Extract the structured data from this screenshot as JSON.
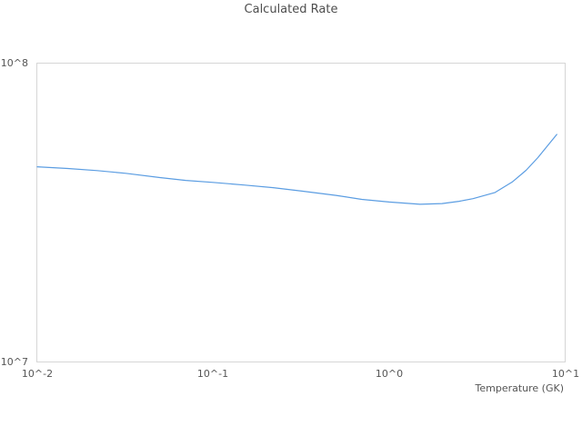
{
  "title": "Calculated Rate",
  "colors": {
    "background": "#ffffff",
    "line": "#5b9de2",
    "plot_border": "#d6d6d6",
    "title_text": "#4d4d4d",
    "tick_text": "#555555"
  },
  "chart_data": {
    "type": "line",
    "title": "Calculated Rate",
    "xlabel": "Temperature (GK)",
    "ylabel": "",
    "x_scale": "log",
    "y_scale": "log",
    "xlim": [
      0.01,
      10
    ],
    "ylim": [
      10000000.0,
      100000000.0
    ],
    "grid": false,
    "legend": "none",
    "x_ticks": [
      {
        "value": 0.01,
        "label": "10^-2"
      },
      {
        "value": 0.1,
        "label": "10^-1"
      },
      {
        "value": 1,
        "label": "10^0"
      },
      {
        "value": 10,
        "label": "10^1"
      }
    ],
    "y_ticks": [
      {
        "value": 10000000.0,
        "label": "10^7"
      },
      {
        "value": 100000000.0,
        "label": "10^8"
      }
    ],
    "series": [
      {
        "name": "calculated-rate",
        "color": "#5b9de2",
        "x": [
          0.01,
          0.015,
          0.022,
          0.032,
          0.05,
          0.07,
          0.1,
          0.15,
          0.22,
          0.32,
          0.5,
          0.7,
          1.0,
          1.5,
          2.0,
          2.5,
          3.0,
          4.0,
          5.0,
          6.0,
          7.0,
          8.0,
          9.0
        ],
        "y": [
          45000000.0,
          44400000.0,
          43700000.0,
          42800000.0,
          41400000.0,
          40500000.0,
          39900000.0,
          39100000.0,
          38300000.0,
          37300000.0,
          36100000.0,
          35000000.0,
          34300000.0,
          33700000.0,
          33900000.0,
          34500000.0,
          35200000.0,
          36900000.0,
          40000000.0,
          43800000.0,
          48300000.0,
          53200000.0,
          57900000.0
        ]
      }
    ]
  }
}
